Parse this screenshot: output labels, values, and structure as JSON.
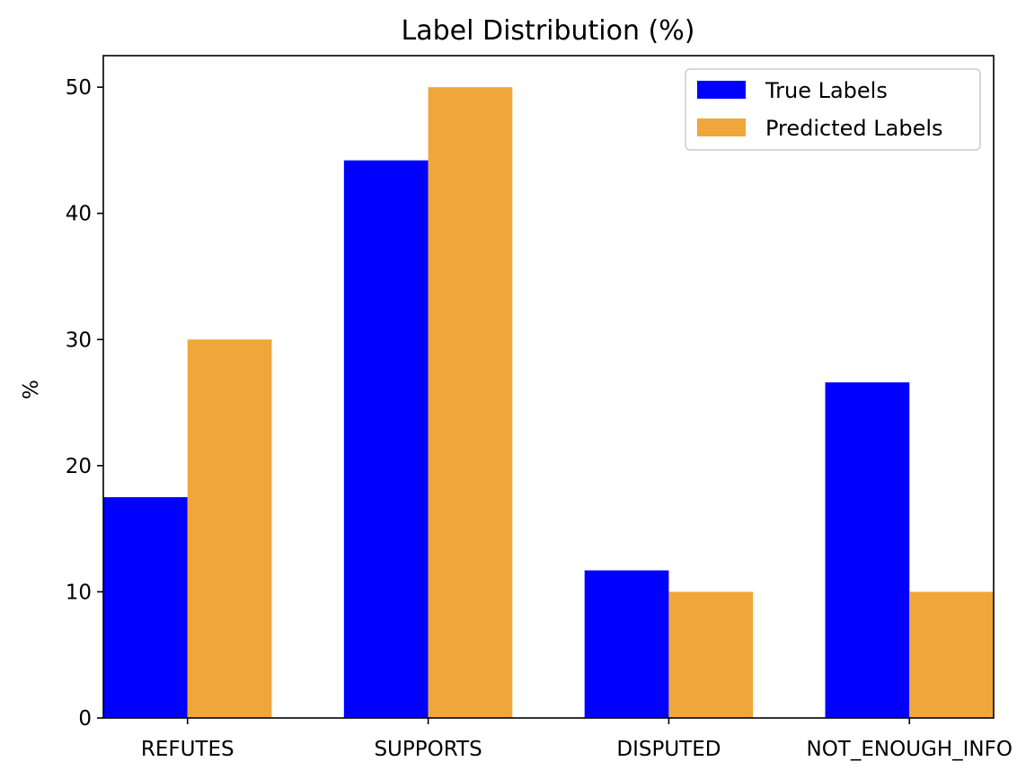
{
  "chart_data": {
    "type": "bar",
    "title": "Label Distribution (%)",
    "xlabel": "",
    "ylabel": "%",
    "categories": [
      "REFUTES",
      "SUPPORTS",
      "DISPUTED",
      "NOT_ENOUGH_INFO"
    ],
    "series": [
      {
        "name": "True Labels",
        "color": "#0000ff",
        "values": [
          17.5,
          44.2,
          11.7,
          26.6
        ]
      },
      {
        "name": "Predicted Labels",
        "color": "#efa73b",
        "values": [
          30.0,
          50.0,
          10.0,
          10.0
        ]
      }
    ],
    "ylim": [
      0,
      52.5
    ],
    "yticks": [
      0,
      10,
      20,
      30,
      40,
      50
    ],
    "grid": false,
    "legend_position": "top-right"
  }
}
